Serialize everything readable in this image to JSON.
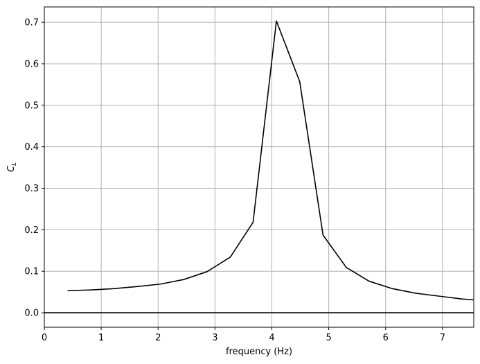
{
  "chart_data": {
    "type": "line",
    "title": "",
    "xlabel": "frequency (Hz)",
    "ylabel": {
      "main": "C",
      "sub": "L"
    },
    "xlim": [
      0,
      7.55
    ],
    "ylim": [
      -0.035,
      0.737
    ],
    "grid": true,
    "legend": "none",
    "xticks": [
      0,
      1,
      2,
      3,
      4,
      5,
      6,
      7
    ],
    "xtick_labels": [
      "0",
      "1",
      "2",
      "3",
      "4",
      "5",
      "6",
      "7"
    ],
    "yticks": [
      0.0,
      0.1,
      0.2,
      0.3,
      0.4,
      0.5,
      0.6,
      0.7
    ],
    "ytick_labels": [
      "0.0",
      "0.1",
      "0.2",
      "0.3",
      "0.4",
      "0.5",
      "0.6",
      "0.7"
    ],
    "series": [
      {
        "color": "#000000",
        "x": [
          0.41,
          0.82,
          1.22,
          1.63,
          2.04,
          2.45,
          2.86,
          3.27,
          3.67,
          4.08,
          4.49,
          4.9,
          5.31,
          5.71,
          6.12,
          6.53,
          6.94,
          7.35,
          7.55
        ],
        "y": [
          0.053,
          0.055,
          0.058,
          0.063,
          0.069,
          0.08,
          0.099,
          0.134,
          0.218,
          0.703,
          0.557,
          0.187,
          0.109,
          0.076,
          0.058,
          0.047,
          0.04,
          0.033,
          0.031
        ]
      },
      {
        "color": "#000000",
        "x": [
          0,
          7.55
        ],
        "y": [
          0.0,
          0.0
        ]
      }
    ]
  }
}
